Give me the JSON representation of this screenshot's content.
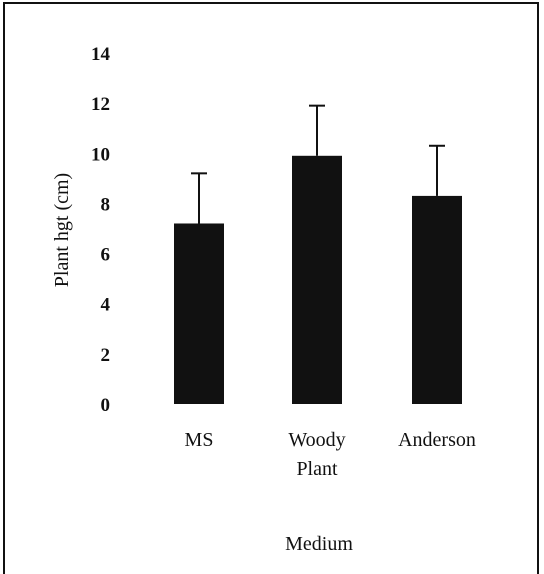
{
  "chart_data": {
    "type": "bar",
    "categories": [
      [
        "MS"
      ],
      [
        "Woody",
        "Plant"
      ],
      [
        "Anderson"
      ]
    ],
    "values": [
      7.2,
      9.9,
      8.3
    ],
    "errors": [
      2.0,
      2.0,
      2.0
    ],
    "ylabel": "Plant hgt (cm)",
    "xlabel": "Medium",
    "ylim": [
      0,
      14
    ],
    "yticks": [
      0,
      2,
      4,
      6,
      8,
      10,
      12,
      14
    ],
    "grid": false,
    "bar_color": "#111111"
  }
}
